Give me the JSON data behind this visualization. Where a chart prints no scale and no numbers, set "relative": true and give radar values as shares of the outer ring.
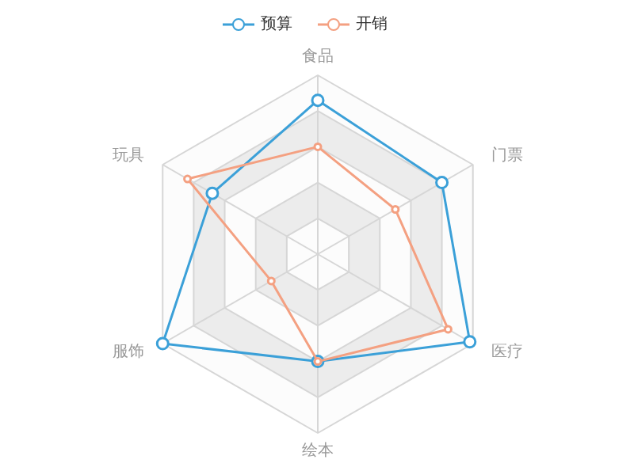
{
  "chart_data": {
    "type": "radar",
    "relative": true,
    "categories": [
      "食品",
      "门票",
      "医疗",
      "绘本",
      "服饰",
      "玩具"
    ],
    "series": [
      {
        "name": "预算",
        "color": "#3ba0d8",
        "values": [
          0.86,
          0.8,
          0.98,
          0.6,
          1.0,
          0.68
        ]
      },
      {
        "name": "开销",
        "color": "#f4a081",
        "values": [
          0.6,
          0.5,
          0.84,
          0.6,
          0.3,
          0.84
        ]
      }
    ],
    "legend": "top",
    "marker": "circle",
    "line_style": "solid"
  }
}
